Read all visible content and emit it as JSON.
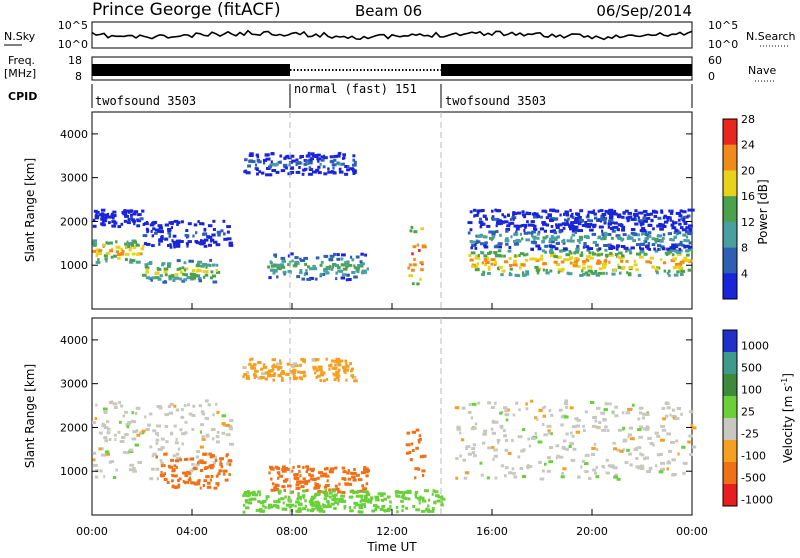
{
  "header": {
    "station": "Prince George (fitACF)",
    "beam": "Beam 06",
    "date": "06/Sep/2014"
  },
  "nsky_panel": {
    "left_label": "N.Sky",
    "right_label": "N.Search",
    "left_ticks": [
      "10^5",
      "10^0"
    ],
    "right_ticks": [
      "10^5",
      "10^0"
    ]
  },
  "freq_panel": {
    "left_label": "Freq.",
    "left_unit": "[MHz]",
    "right_label": "Nave",
    "left_ticks": [
      "18",
      "8"
    ],
    "right_ticks": [
      "60",
      "0"
    ]
  },
  "cpid": {
    "label": "CPID",
    "segments": [
      {
        "start_hour": 0,
        "end_hour": 8,
        "text": "twofsound 3503"
      },
      {
        "start_hour": 8,
        "end_hour": 14,
        "text": "normal (fast) 151"
      },
      {
        "start_hour": 14,
        "end_hour": 24,
        "text": "twofsound 3503"
      }
    ]
  },
  "axes": {
    "ylabel": "Slant Range [km]",
    "xlabel": "Time UT",
    "x_ticks": [
      "00:00",
      "04:00",
      "08:00",
      "12:00",
      "16:00",
      "20:00",
      "00:00"
    ],
    "y_ticks": [
      "1000",
      "2000",
      "3000",
      "4000"
    ]
  },
  "power_bar": {
    "label": "Power [dB]",
    "ticks": [
      "4",
      "8",
      "12",
      "16",
      "20",
      "24",
      "28"
    ],
    "colors": [
      "#1a24d8",
      "#2d5fb4",
      "#4aa0a0",
      "#4ca24c",
      "#e8d21a",
      "#f08a1a",
      "#e8281e"
    ]
  },
  "velocity_bar": {
    "label": "Velocity [m s",
    "label_sup": "-1",
    "label_end": "]",
    "ticks": [
      "1000",
      "500",
      "100",
      "25",
      "-25",
      "-100",
      "-500",
      "-1000"
    ],
    "colors": [
      "#2030c8",
      "#3f9a8c",
      "#3d8a3d",
      "#6ad03a",
      "#c8c8c0",
      "#f5a020",
      "#f07018",
      "#e81e1e"
    ]
  },
  "chart_data": [
    {
      "type": "heatmap",
      "title": "Power",
      "xlabel": "Time UT",
      "ylabel": "Slant Range [km]",
      "xlim": [
        0,
        24
      ],
      "ylim": [
        0,
        4500
      ],
      "colorbar": "Power [dB]",
      "color_range": [
        0,
        30
      ],
      "bands": [
        {
          "x_start": 0.0,
          "x_end": 2.0,
          "range_center": 1300,
          "range_width": 250,
          "power_db": 26
        },
        {
          "x_start": 0.0,
          "x_end": 2.0,
          "range_center": 2050,
          "range_width": 200,
          "power_db": 8
        },
        {
          "x_start": 2.0,
          "x_end": 5.0,
          "range_center": 850,
          "range_width": 250,
          "power_db": 22
        },
        {
          "x_start": 2.0,
          "x_end": 5.5,
          "range_center": 1700,
          "range_width": 300,
          "power_db": 10
        },
        {
          "x_start": 6.0,
          "x_end": 10.5,
          "range_center": 3300,
          "range_width": 250,
          "power_db": 12
        },
        {
          "x_start": 7.0,
          "x_end": 11.0,
          "range_center": 950,
          "range_width": 300,
          "power_db": 18
        },
        {
          "x_start": 12.5,
          "x_end": 13.2,
          "range_center": 1200,
          "range_width": 700,
          "power_db": 30
        },
        {
          "x_start": 15.0,
          "x_end": 24.0,
          "range_center": 1050,
          "range_width": 300,
          "power_db": 26
        },
        {
          "x_start": 15.0,
          "x_end": 24.0,
          "range_center": 1600,
          "range_width": 250,
          "power_db": 16
        },
        {
          "x_start": 15.0,
          "x_end": 24.0,
          "range_center": 2050,
          "range_width": 200,
          "power_db": 10
        }
      ]
    },
    {
      "type": "heatmap",
      "title": "Velocity",
      "xlabel": "Time UT",
      "ylabel": "Slant Range [km]",
      "xlim": [
        0,
        24
      ],
      "ylim": [
        0,
        4500
      ],
      "colorbar": "Velocity [m s-1]",
      "color_range": [
        -1000,
        1000
      ],
      "bands": [
        {
          "x_start": 0.0,
          "x_end": 5.5,
          "range_center": 1700,
          "range_width": 900,
          "velocity": 0
        },
        {
          "x_start": 2.5,
          "x_end": 5.5,
          "range_center": 1000,
          "range_width": 400,
          "velocity": -300
        },
        {
          "x_start": 6.0,
          "x_end": 10.5,
          "range_center": 3300,
          "range_width": 250,
          "velocity": -50
        },
        {
          "x_start": 7.0,
          "x_end": 11.0,
          "range_center": 800,
          "range_width": 300,
          "velocity": -150
        },
        {
          "x_start": 12.5,
          "x_end": 13.2,
          "range_center": 1400,
          "range_width": 600,
          "velocity": -400
        },
        {
          "x_start": 14.5,
          "x_end": 24.0,
          "range_center": 1700,
          "range_width": 900,
          "velocity": 0
        },
        {
          "x_start": 6.0,
          "x_end": 14.0,
          "range_center": 300,
          "range_width": 250,
          "velocity": 60
        }
      ]
    }
  ]
}
